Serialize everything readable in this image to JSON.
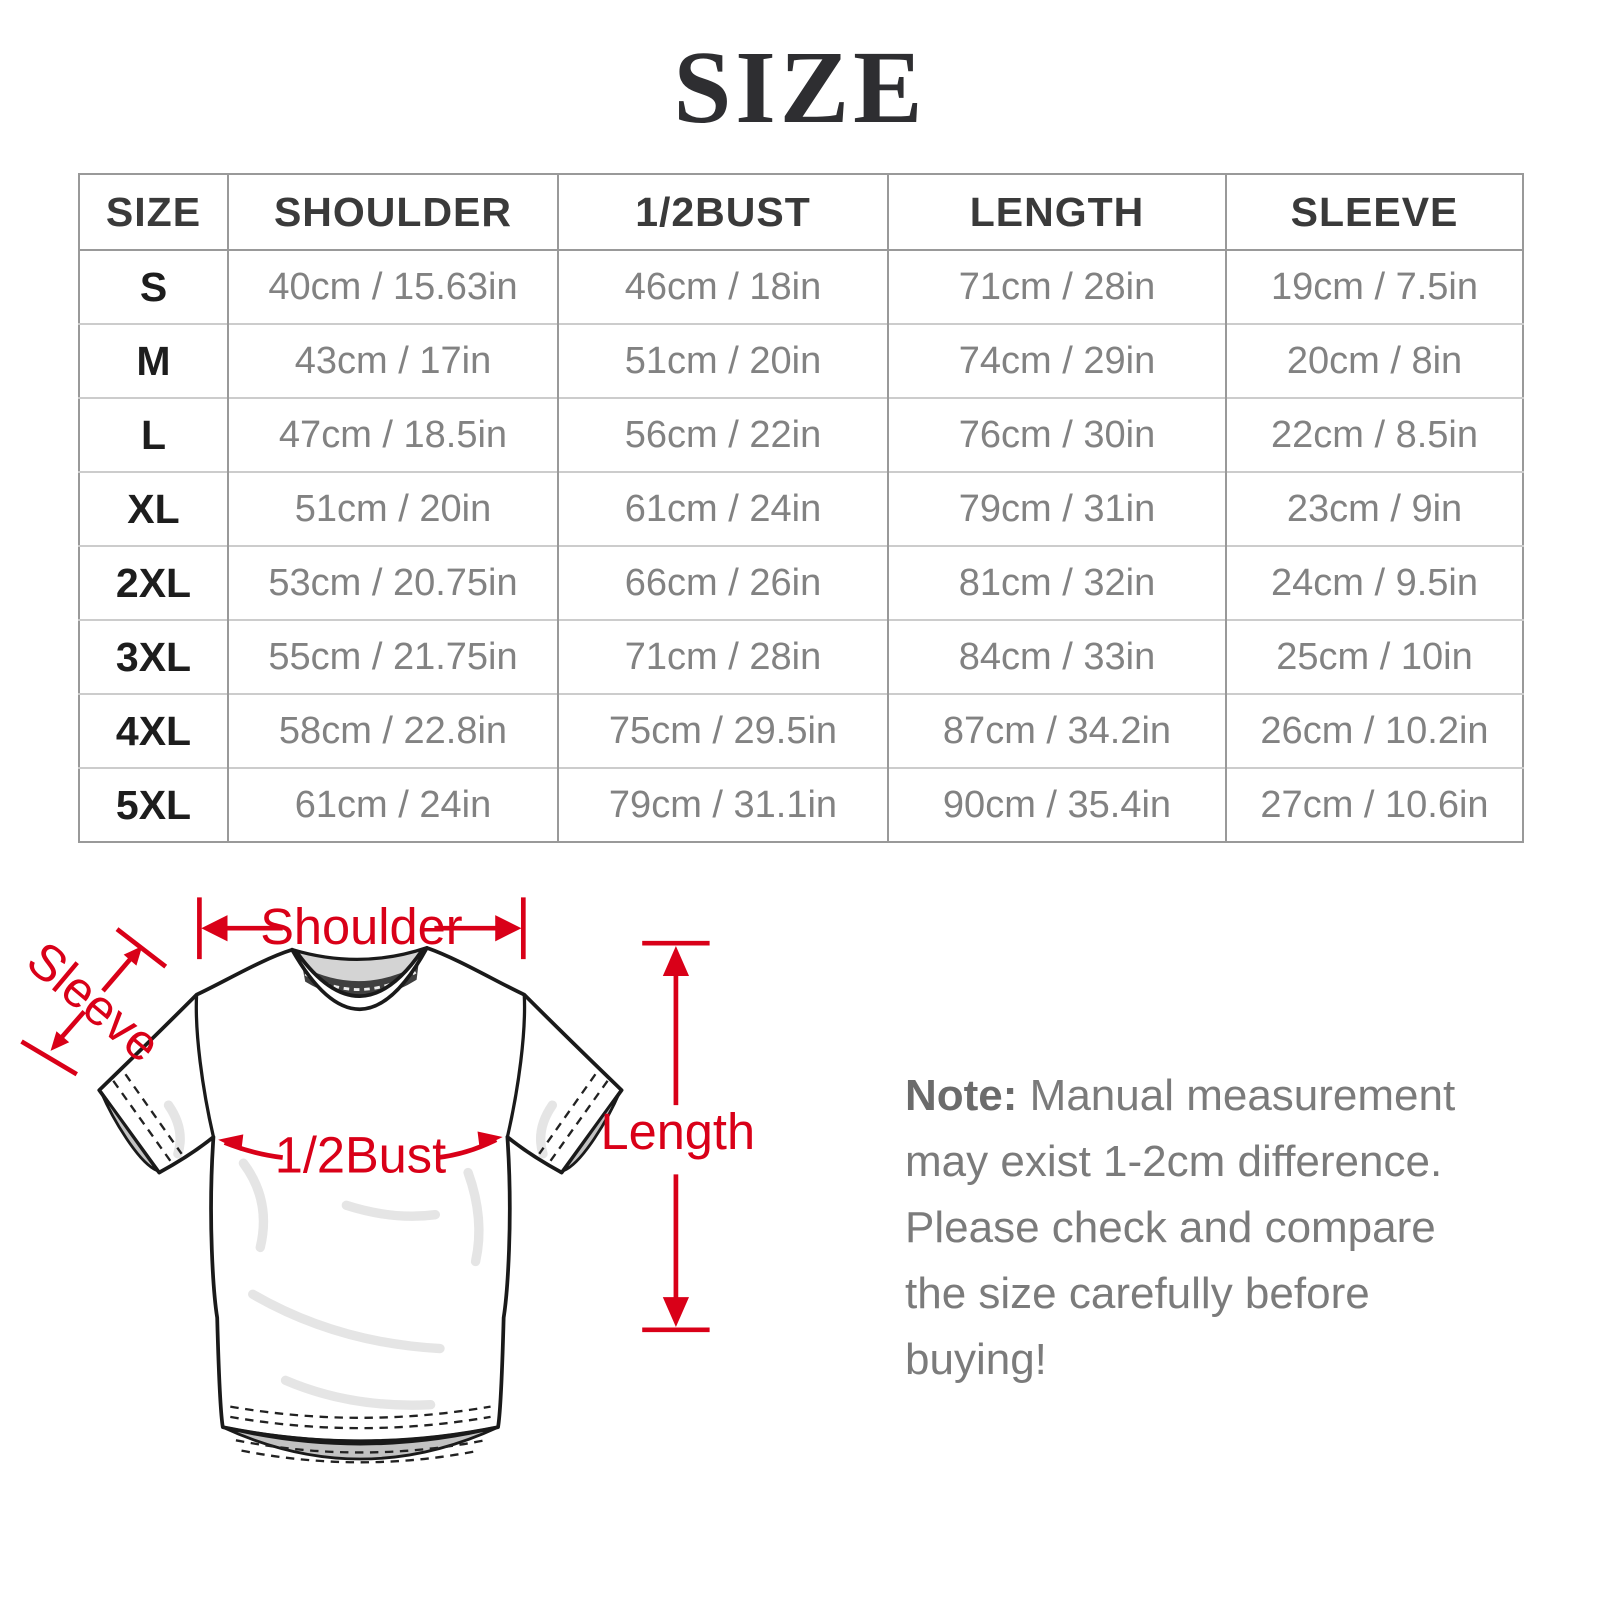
{
  "title": "SIZE",
  "table": {
    "columns": [
      "SIZE",
      "SHOULDER",
      "1/2BUST",
      "LENGTH",
      "SLEEVE"
    ],
    "rows": [
      [
        "S",
        "40cm / 15.63in",
        "46cm / 18in",
        "71cm / 28in",
        "19cm / 7.5in"
      ],
      [
        "M",
        "43cm / 17in",
        "51cm / 20in",
        "74cm / 29in",
        "20cm / 8in"
      ],
      [
        "L",
        "47cm / 18.5in",
        "56cm / 22in",
        "76cm / 30in",
        "22cm / 8.5in"
      ],
      [
        "XL",
        "51cm / 20in",
        "61cm / 24in",
        "79cm / 31in",
        "23cm / 9in"
      ],
      [
        "2XL",
        "53cm / 20.75in",
        "66cm / 26in",
        "81cm / 32in",
        "24cm / 9.5in"
      ],
      [
        "3XL",
        "55cm / 21.75in",
        "71cm / 28in",
        "84cm / 33in",
        "25cm / 10in"
      ],
      [
        "4XL",
        "58cm / 22.8in",
        "75cm / 29.5in",
        "87cm / 34.2in",
        "26cm / 10.2in"
      ],
      [
        "5XL",
        "61cm / 24in",
        "79cm / 31.1in",
        "90cm / 35.4in",
        "27cm / 10.6in"
      ]
    ]
  },
  "diagram": {
    "shoulder_label": "Shoulder",
    "sleeve_label": "Sleeve",
    "bust_label": "1/2Bust",
    "length_label": "Length"
  },
  "note": {
    "label": "Note:",
    "text": " Manual measurement may exist 1-2cm difference. Please check and compare the size carefully before buying!"
  },
  "colors": {
    "accent_red": "#d90018",
    "table_border": "#999999",
    "row_line": "#cccccc",
    "cell_text": "#828282",
    "header_text": "#3a3a3a",
    "size_text": "#1d1d1d",
    "note_text": "#7b7b7b",
    "title_text": "#2e2e31"
  }
}
